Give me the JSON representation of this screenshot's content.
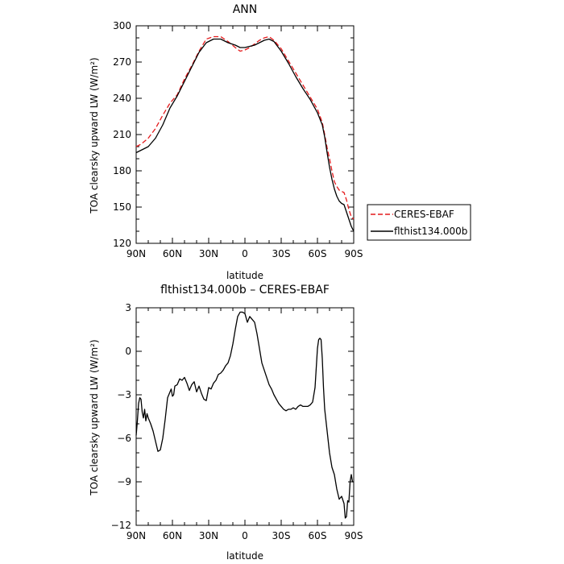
{
  "chart_data": [
    {
      "type": "line",
      "title": "ANN",
      "xlabel": "latitude",
      "ylabel": "TOA clearsky upward LW (W/m²)",
      "x_unit_note": "latitude, positive = North, negative = South",
      "xlim": [
        90,
        -90
      ],
      "ylim": [
        120,
        300
      ],
      "xticks": [
        90,
        60,
        30,
        0,
        -30,
        -60,
        -90
      ],
      "xtick_labels": [
        "90N",
        "60N",
        "30N",
        "0",
        "30S",
        "60S",
        "90S"
      ],
      "yticks": [
        120,
        150,
        180,
        210,
        240,
        270,
        300
      ],
      "ytick_labels": [
        "120",
        "150",
        "180",
        "210",
        "240",
        "270",
        "300"
      ],
      "legend_position": "right",
      "x": [
        90,
        86,
        80,
        74,
        68,
        62,
        56,
        50,
        44,
        38,
        32,
        26,
        20,
        14,
        8,
        4,
        0,
        -4,
        -8,
        -12,
        -16,
        -20,
        -24,
        -30,
        -36,
        -42,
        -48,
        -54,
        -60,
        -64,
        -66,
        -68,
        -70,
        -72,
        -74,
        -76,
        -78,
        -80,
        -82,
        -84,
        -86,
        -88,
        -90
      ],
      "series": [
        {
          "name": "CERES-EBAF",
          "color": "#e41a1c",
          "dash": "dashed",
          "values": [
            200,
            202,
            207,
            215,
            226,
            236,
            243,
            256,
            267,
            279,
            289,
            291,
            291,
            287,
            282,
            279,
            280,
            282,
            285,
            288,
            290,
            291,
            288,
            281,
            271,
            261,
            251,
            241,
            231,
            220,
            210,
            199,
            190,
            180,
            171,
            167,
            164,
            163,
            162,
            156,
            148,
            142,
            140
          ]
        },
        {
          "name": "flthist134.000b",
          "color": "#000000",
          "dash": "solid",
          "values": [
            195,
            197,
            200,
            207,
            218,
            232,
            242,
            254,
            266,
            278,
            286,
            289,
            289,
            286,
            284,
            282,
            282,
            283,
            284,
            286,
            288,
            289,
            287,
            279,
            269,
            258,
            248,
            239,
            228,
            218,
            208,
            195,
            183,
            173,
            165,
            159,
            155,
            153,
            152,
            146,
            140,
            134,
            130
          ]
        }
      ]
    },
    {
      "type": "line",
      "title": "flthist134.000b – CERES-EBAF",
      "xlabel": "latitude",
      "ylabel": "TOA clearsky upward LW (W/m²)",
      "xlim": [
        90,
        -90
      ],
      "ylim": [
        -12,
        3
      ],
      "xticks": [
        90,
        60,
        30,
        0,
        -30,
        -60,
        -90
      ],
      "xtick_labels": [
        "90N",
        "60N",
        "30N",
        "0",
        "30S",
        "60S",
        "90S"
      ],
      "yticks": [
        -12,
        -9,
        -6,
        -3,
        0,
        3
      ],
      "ytick_labels": [
        "−12",
        "−9",
        "−6",
        "−3",
        "0",
        "3"
      ],
      "x": [
        90,
        89,
        88,
        87,
        86,
        85,
        84,
        83,
        82,
        81,
        80,
        78,
        76,
        74,
        72,
        70,
        68,
        66,
        64,
        62,
        61,
        60,
        59,
        58,
        56,
        54,
        52,
        50,
        48,
        46,
        44,
        42,
        40,
        38,
        36,
        34,
        32,
        30,
        28,
        26,
        24,
        22,
        20,
        18,
        16,
        14,
        12,
        10,
        8,
        6,
        4,
        2,
        0,
        -2,
        -4,
        -6,
        -8,
        -10,
        -12,
        -14,
        -16,
        -18,
        -20,
        -22,
        -24,
        -26,
        -28,
        -30,
        -32,
        -34,
        -36,
        -38,
        -40,
        -42,
        -44,
        -46,
        -48,
        -50,
        -52,
        -54,
        -56,
        -58,
        -60,
        -61,
        -62,
        -63,
        -64,
        -65,
        -66,
        -68,
        -70,
        -72,
        -74,
        -76,
        -78,
        -80,
        -82,
        -83,
        -84,
        -85,
        -86,
        -87,
        -88,
        -89,
        -90
      ],
      "series": [
        {
          "name": "flthist134.000b – CERES-EBAF",
          "color": "#000000",
          "dash": "solid",
          "values": [
            -5.8,
            -4.8,
            -3.6,
            -3.2,
            -3.3,
            -4.2,
            -4.6,
            -4.0,
            -4.8,
            -4.3,
            -4.6,
            -5.0,
            -5.5,
            -6.2,
            -6.9,
            -6.8,
            -6.0,
            -4.7,
            -3.2,
            -2.8,
            -2.6,
            -3.1,
            -3.0,
            -2.4,
            -2.3,
            -1.9,
            -2.0,
            -1.8,
            -2.2,
            -2.7,
            -2.3,
            -2.1,
            -2.8,
            -2.4,
            -2.9,
            -3.3,
            -3.4,
            -2.5,
            -2.6,
            -2.2,
            -2.0,
            -1.6,
            -1.5,
            -1.3,
            -1.0,
            -0.8,
            -0.3,
            0.5,
            1.5,
            2.4,
            2.7,
            2.7,
            2.6,
            2.0,
            2.4,
            2.2,
            2.0,
            1.2,
            0.2,
            -0.8,
            -1.3,
            -1.8,
            -2.3,
            -2.6,
            -3.0,
            -3.3,
            -3.6,
            -3.8,
            -4.0,
            -4.1,
            -4.0,
            -4.0,
            -3.9,
            -4.0,
            -3.8,
            -3.7,
            -3.8,
            -3.8,
            -3.8,
            -3.7,
            -3.5,
            -2.5,
            0.2,
            0.8,
            0.9,
            0.8,
            -0.5,
            -2.5,
            -4.0,
            -5.5,
            -7.0,
            -8.0,
            -8.5,
            -9.5,
            -10.2,
            -10.0,
            -10.5,
            -11.5,
            -11.4,
            -10.3,
            -10.4,
            -9.0,
            -8.5,
            -9.0,
            -9.0
          ]
        }
      ]
    }
  ],
  "legend": {
    "entries": [
      "CERES-EBAF",
      "flthist134.000b"
    ]
  }
}
